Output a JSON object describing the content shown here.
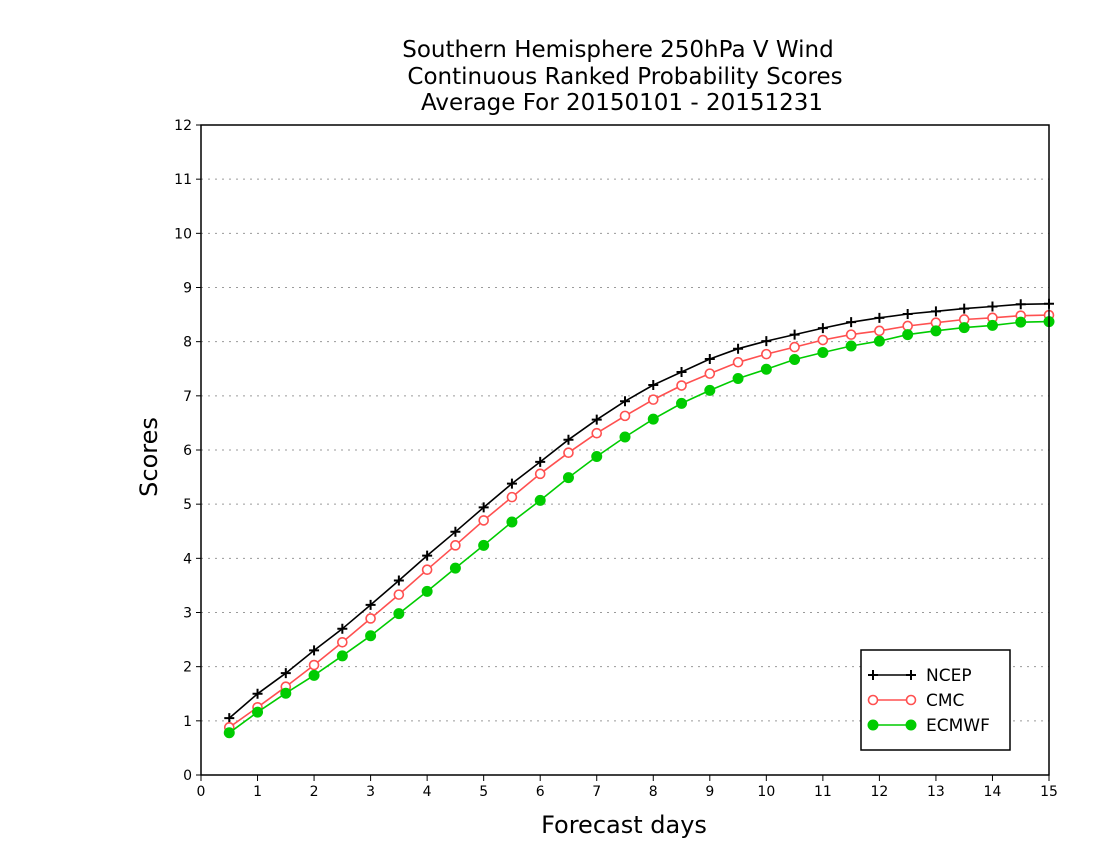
{
  "chart_data": {
    "type": "line",
    "title": [
      "Southern Hemisphere 250hPa V Wind",
      "Continuous Ranked Probability Scores",
      "Average For 20150101 - 20151231"
    ],
    "xlabel": "Forecast days",
    "ylabel": "Scores",
    "xlim": [
      0,
      15
    ],
    "ylim": [
      0,
      12
    ],
    "xticks": [
      "0",
      "1",
      "2",
      "3",
      "4",
      "5",
      "6",
      "7",
      "8",
      "9",
      "10",
      "11",
      "12",
      "13",
      "14",
      "15"
    ],
    "yticks": [
      "0",
      "1",
      "2",
      "3",
      "4",
      "5",
      "6",
      "7",
      "8",
      "9",
      "10",
      "11",
      "12"
    ],
    "grid": "horizontal-dotted",
    "legend_position": "bottom-right",
    "x": [
      0.5,
      1,
      1.5,
      2,
      2.5,
      3,
      3.5,
      4,
      4.5,
      5,
      5.5,
      6,
      6.5,
      7,
      7.5,
      8,
      8.5,
      9,
      9.5,
      10,
      10.5,
      11,
      11.5,
      12,
      12.5,
      13,
      13.5,
      14,
      14.5,
      15
    ],
    "series": [
      {
        "name": "NCEP",
        "color": "#000000",
        "marker": "plus",
        "values": [
          1.05,
          1.5,
          1.88,
          2.3,
          2.7,
          3.14,
          3.59,
          4.05,
          4.49,
          4.94,
          5.38,
          5.78,
          6.19,
          6.56,
          6.9,
          7.2,
          7.44,
          7.68,
          7.87,
          8.01,
          8.13,
          8.25,
          8.36,
          8.44,
          8.51,
          8.56,
          8.61,
          8.65,
          8.69,
          8.7
        ]
      },
      {
        "name": "CMC",
        "color": "#ff5050",
        "marker": "open-circle",
        "values": [
          0.88,
          1.25,
          1.63,
          2.03,
          2.45,
          2.89,
          3.33,
          3.79,
          4.24,
          4.7,
          5.13,
          5.56,
          5.95,
          6.31,
          6.63,
          6.93,
          7.19,
          7.41,
          7.62,
          7.77,
          7.9,
          8.03,
          8.13,
          8.2,
          8.29,
          8.35,
          8.41,
          8.44,
          8.48,
          8.49
        ]
      },
      {
        "name": "ECMWF",
        "color": "#00cc00",
        "marker": "filled-circle",
        "values": [
          0.78,
          1.16,
          1.51,
          1.84,
          2.2,
          2.57,
          2.98,
          3.39,
          3.82,
          4.24,
          4.67,
          5.07,
          5.49,
          5.88,
          6.24,
          6.57,
          6.86,
          7.1,
          7.32,
          7.49,
          7.67,
          7.8,
          7.92,
          8.01,
          8.13,
          8.2,
          8.26,
          8.3,
          8.36,
          8.37
        ]
      }
    ]
  }
}
